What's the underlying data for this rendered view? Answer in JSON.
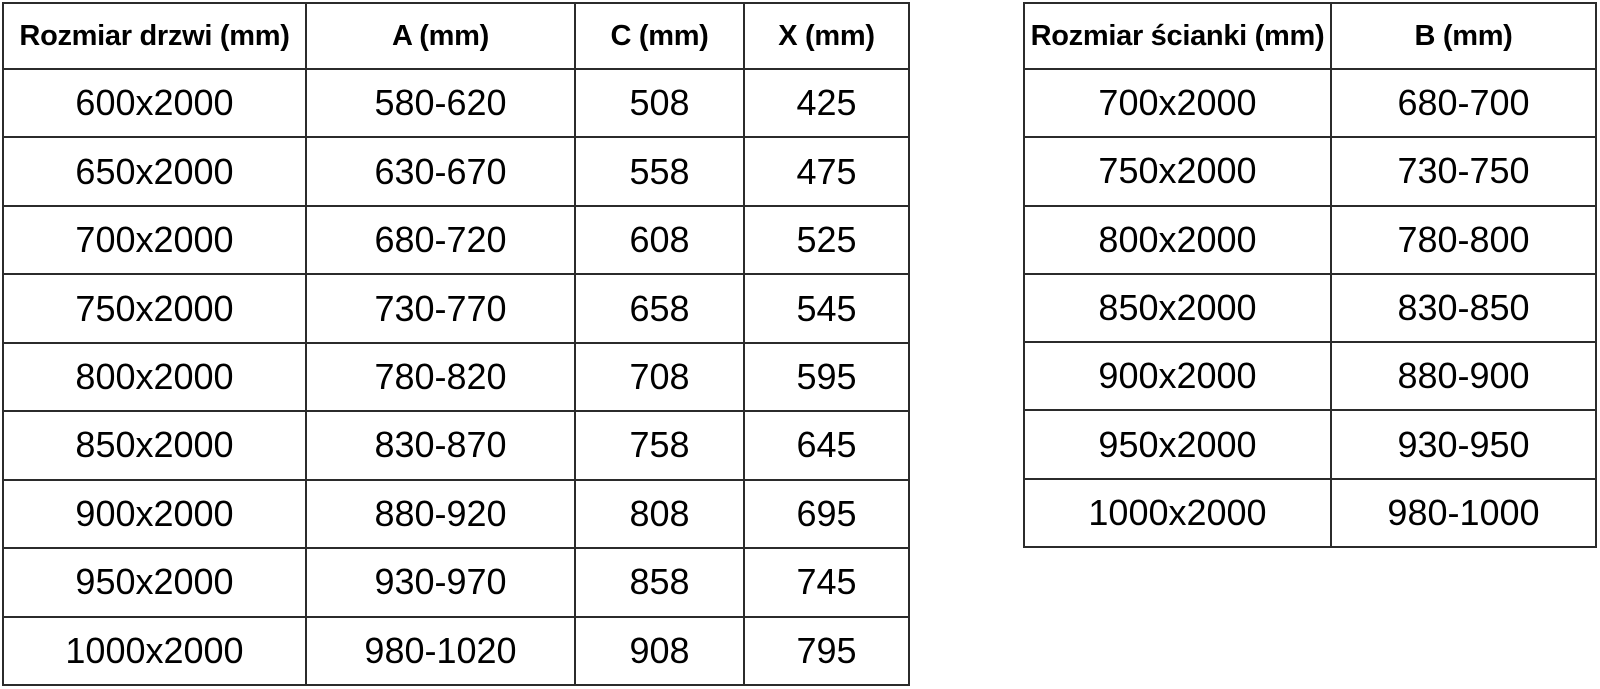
{
  "page": {
    "background_color": "#ffffff",
    "text_color": "#000000",
    "border_color": "#2b2b2b"
  },
  "tables": [
    {
      "name": "door-size-table",
      "headers": [
        "Rozmiar drzwi (mm)",
        "A (mm)",
        "C (mm)",
        "X (mm)"
      ],
      "rows": [
        [
          "600x2000",
          "580-620",
          "508",
          "425"
        ],
        [
          "650x2000",
          "630-670",
          "558",
          "475"
        ],
        [
          "700x2000",
          "680-720",
          "608",
          "525"
        ],
        [
          "750x2000",
          "730-770",
          "658",
          "545"
        ],
        [
          "800x2000",
          "780-820",
          "708",
          "595"
        ],
        [
          "850x2000",
          "830-870",
          "758",
          "645"
        ],
        [
          "900x2000",
          "880-920",
          "808",
          "695"
        ],
        [
          "950x2000",
          "930-970",
          "858",
          "745"
        ],
        [
          "1000x2000",
          "980-1020",
          "908",
          "795"
        ]
      ]
    },
    {
      "name": "wall-panel-size-table",
      "headers": [
        "Rozmiar ścianki (mm)",
        "B (mm)"
      ],
      "rows": [
        [
          "700x2000",
          "680-700"
        ],
        [
          "750x2000",
          "730-750"
        ],
        [
          "800x2000",
          "780-800"
        ],
        [
          "850x2000",
          "830-850"
        ],
        [
          "900x2000",
          "880-900"
        ],
        [
          "950x2000",
          "930-950"
        ],
        [
          "1000x2000",
          "980-1000"
        ]
      ]
    }
  ]
}
